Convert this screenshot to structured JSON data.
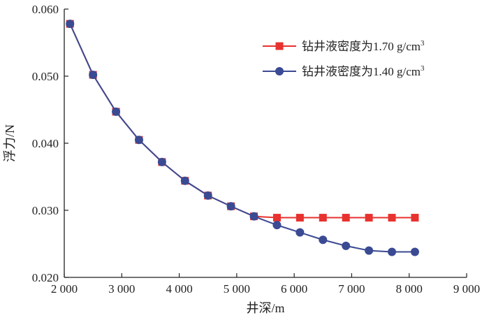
{
  "chart_data": {
    "type": "line",
    "title": "",
    "xlabel": "井深/m",
    "ylabel": "浮力/N",
    "xlim": [
      2000,
      9000
    ],
    "ylim": [
      0.02,
      0.06
    ],
    "xticks": [
      2000,
      3000,
      4000,
      5000,
      6000,
      7000,
      8000,
      9000
    ],
    "xtick_labels": [
      "2 000",
      "3 000",
      "4 000",
      "5 000",
      "6 000",
      "7 000",
      "8 000",
      "9 000"
    ],
    "yticks": [
      0.02,
      0.03,
      0.04,
      0.05,
      0.06
    ],
    "ytick_labels": [
      "0.020",
      "0.030",
      "0.040",
      "0.050",
      "0.060"
    ],
    "grid": false,
    "legend_position": "top-right",
    "x": [
      2100,
      2500,
      2900,
      3300,
      3700,
      4100,
      4500,
      4900,
      5300,
      5700,
      6100,
      6500,
      6900,
      7300,
      7700,
      8100
    ],
    "series": [
      {
        "name": "钻井液密度为1.70 g/cm³",
        "label_main": "钻井液密度为1.70 g/cm",
        "label_sup": "3",
        "color": "#e8322f",
        "marker": "square",
        "values": [
          0.0578,
          0.0502,
          0.0447,
          0.0405,
          0.0372,
          0.0344,
          0.0322,
          0.0306,
          0.0291,
          0.0289,
          0.0289,
          0.0289,
          0.0289,
          0.0289,
          0.0289,
          0.0289
        ]
      },
      {
        "name": "钻井液密度为1.40 g/cm³",
        "label_main": "钻井液密度为1.40 g/cm",
        "label_sup": "3",
        "color": "#3a4a93",
        "marker": "circle",
        "values": [
          0.0578,
          0.0502,
          0.0447,
          0.0405,
          0.0372,
          0.0344,
          0.0322,
          0.0306,
          0.0291,
          0.0278,
          0.0267,
          0.0256,
          0.0247,
          0.024,
          0.0238,
          0.0238
        ]
      }
    ]
  }
}
